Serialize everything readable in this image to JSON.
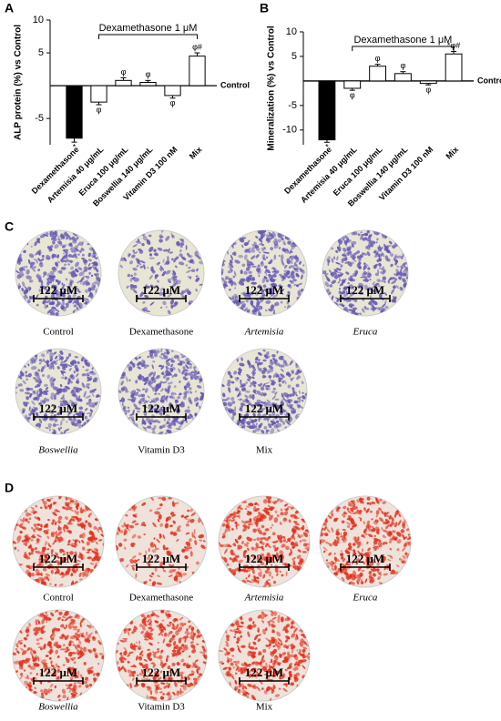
{
  "chart_data": [
    {
      "type": "bar",
      "panel": "A",
      "y_label": "ALP protein (%) vs Control",
      "bracket_label": "Dexamethasone 1 μM",
      "zero_label": "Control",
      "categories": [
        "Dexamethasone",
        "Artemisia 40 μg/mL",
        "Eruca 100 μg/mL",
        "Boswellia 140 μg/mL",
        "Vitamin D3 100 nM",
        "Mix"
      ],
      "values": [
        -8,
        -2.5,
        0.8,
        0.5,
        -1.5,
        4.5
      ],
      "errors": [
        0.6,
        0.4,
        0.4,
        0.3,
        0.4,
        0.5
      ],
      "annotations": [
        "*",
        "φ",
        "φ",
        "φ",
        "φ",
        "φ#"
      ],
      "colors": [
        "#000000",
        "#ffffff",
        "#ffffff",
        "#ffffff",
        "#ffffff",
        "#ffffff"
      ],
      "ylim": [
        -9,
        10
      ],
      "yticks": [
        10,
        5,
        -5
      ]
    },
    {
      "type": "bar",
      "panel": "B",
      "y_label": "Mineralization (%) vs Control",
      "bracket_label": "Dexamethasone 1 μM",
      "zero_label": "Control",
      "categories": [
        "Dexamethasone",
        "Artemisia 40 μg/mL",
        "Eruca 100 μg/mL",
        "Boswellia 140 μg/mL",
        "Vitamin D3 100 nM",
        "Mix"
      ],
      "values": [
        -12,
        -1.5,
        3,
        1.5,
        -0.5,
        5.5
      ],
      "errors": [
        0.5,
        0.4,
        0.4,
        0.4,
        0.3,
        0.5
      ],
      "annotations": [
        "*",
        "φ",
        "φ",
        "φ",
        "φ",
        "*φ#"
      ],
      "colors": [
        "#000000",
        "#ffffff",
        "#ffffff",
        "#ffffff",
        "#ffffff",
        "#ffffff"
      ],
      "ylim": [
        -13,
        10
      ],
      "yticks": [
        10,
        5,
        -5,
        -10
      ]
    }
  ],
  "image_panels": [
    {
      "panel": "C",
      "stain": "#6458b4",
      "background": "#e8e5d4",
      "scale_label": "122 μM",
      "items": [
        {
          "caption": "Control",
          "italic": false
        },
        {
          "caption": "Dexamethasone",
          "italic": false
        },
        {
          "caption": "Artemisia",
          "italic": true
        },
        {
          "caption": "Eruca",
          "italic": true
        },
        {
          "caption": "Boswellia",
          "italic": true
        },
        {
          "caption": "Vitamin D3",
          "italic": false
        },
        {
          "caption": "Mix",
          "italic": false
        }
      ]
    },
    {
      "panel": "D",
      "stain": "#e3301c",
      "background": "#efe2da",
      "scale_label": "122 μM",
      "items": [
        {
          "caption": "Control",
          "italic": false
        },
        {
          "caption": "Dexamethasone",
          "italic": false
        },
        {
          "caption": "Artemisia",
          "italic": true
        },
        {
          "caption": "Eruca",
          "italic": true
        },
        {
          "caption": "Boswellia",
          "italic": true
        },
        {
          "caption": "Vitamin D3",
          "italic": false
        },
        {
          "caption": "Mix",
          "italic": false
        }
      ]
    }
  ]
}
